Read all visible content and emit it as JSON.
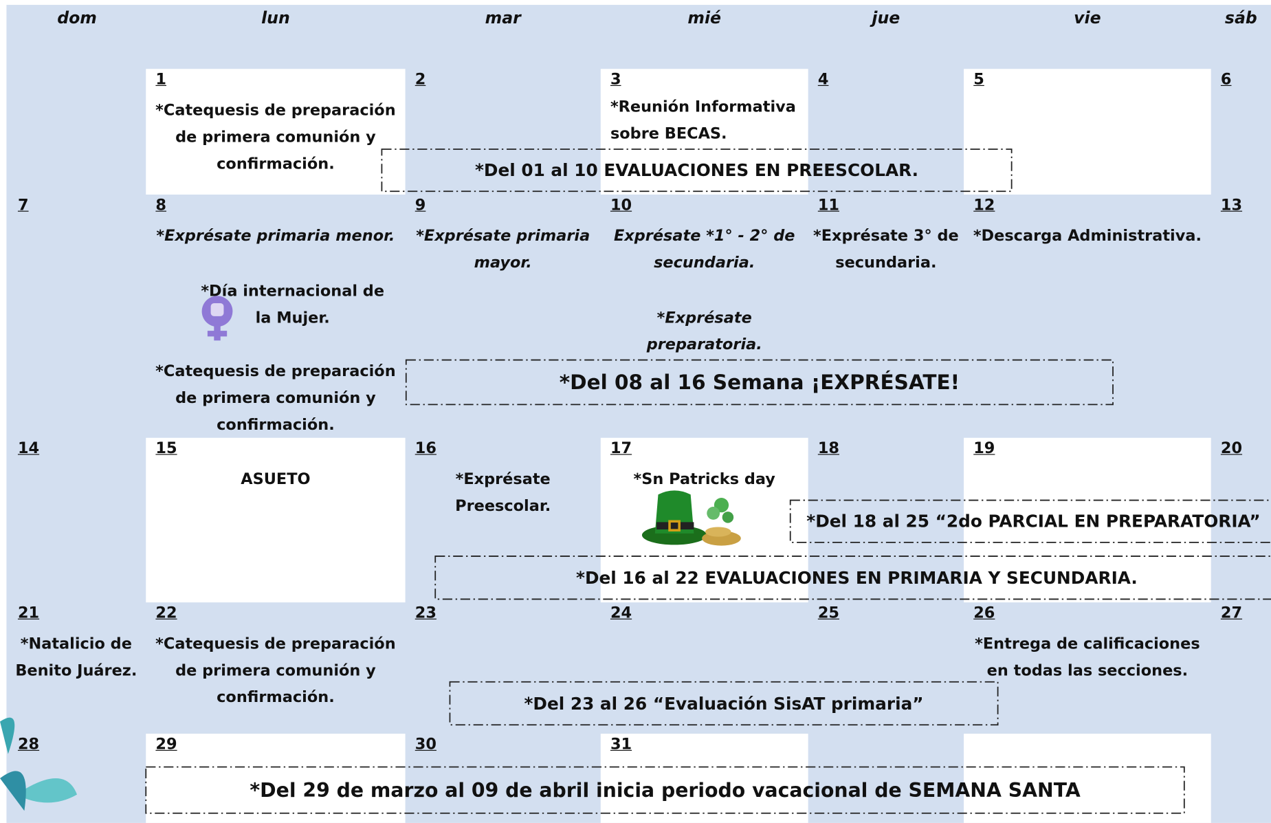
{
  "weekdays": [
    "dom",
    "lun",
    "mar",
    "mié",
    "jue",
    "vie",
    "sáb"
  ],
  "weeks": [
    [
      null,
      {
        "day": "1",
        "notes": [
          {
            "text": "*Catequesis de preparación de primera comunión y confirmación."
          }
        ]
      },
      {
        "day": "2"
      },
      {
        "day": "3",
        "notes": [
          {
            "text": "*Reunión Informativa sobre  BECAS.",
            "align": "left"
          }
        ]
      },
      {
        "day": "4"
      },
      {
        "day": "5"
      },
      {
        "day": "6"
      }
    ],
    [
      {
        "day": "7"
      },
      {
        "day": "8",
        "notes": [
          {
            "text": "*Exprésate primaria menor.",
            "italic": true
          },
          {
            "text": "*Día internacional de la Mujer."
          },
          {
            "text": "*Catequesis de preparación de primera comunión y confirmación."
          }
        ]
      },
      {
        "day": "9",
        "notes": [
          {
            "text": "*Exprésate primaria mayor.",
            "italic": true
          }
        ]
      },
      {
        "day": "10",
        "notes": [
          {
            "text": "Exprésate *1° - 2° de secundaria.",
            "italic": true
          },
          {
            "text": "*Exprésate preparatoria.",
            "italic": true
          }
        ]
      },
      {
        "day": "11",
        "notes": [
          {
            "text": "*Exprésate 3° de secundaria."
          }
        ]
      },
      {
        "day": "12",
        "notes": [
          {
            "text": "*Descarga Administrativa."
          }
        ]
      },
      {
        "day": "13"
      }
    ],
    [
      {
        "day": "14"
      },
      {
        "day": "15",
        "notes": [
          {
            "text": "ASUETO"
          }
        ]
      },
      {
        "day": "16",
        "notes": [
          {
            "text": "*Exprésate Preescolar."
          }
        ]
      },
      {
        "day": "17",
        "notes": [
          {
            "text": "*Sn Patricks day"
          }
        ]
      },
      {
        "day": "18"
      },
      {
        "day": "19"
      },
      {
        "day": "20"
      }
    ],
    [
      {
        "day": "21",
        "notes": [
          {
            "text": "*Natalicio de Benito Juárez."
          }
        ]
      },
      {
        "day": "22",
        "notes": [
          {
            "text": "*Catequesis de preparación de primera comunión y confirmación."
          }
        ]
      },
      {
        "day": "23"
      },
      {
        "day": "24"
      },
      {
        "day": "25"
      },
      {
        "day": "26",
        "notes": [
          {
            "text": "*Entrega de calificaciones en todas las secciones."
          }
        ]
      },
      {
        "day": "27"
      }
    ],
    [
      {
        "day": "28"
      },
      {
        "day": "29"
      },
      {
        "day": "30"
      },
      {
        "day": "31"
      },
      null,
      null,
      null
    ]
  ],
  "banners": [
    "*Del 01 al 10 EVALUACIONES EN PREESCOLAR.",
    "*Del 08 al 16 Semana ¡EXPRÉSATE!",
    "*Del 18 al 25 “2do PARCIAL EN PREPARATORIA”",
    "*Del 16 al 22 EVALUACIONES EN PRIMARIA Y SECUNDARIA.",
    "*Del 23 al 26 “Evaluación SisAT primaria”",
    "*Del 29 de marzo al 09 de abril inicia periodo vacacional de SEMANA SANTA"
  ]
}
